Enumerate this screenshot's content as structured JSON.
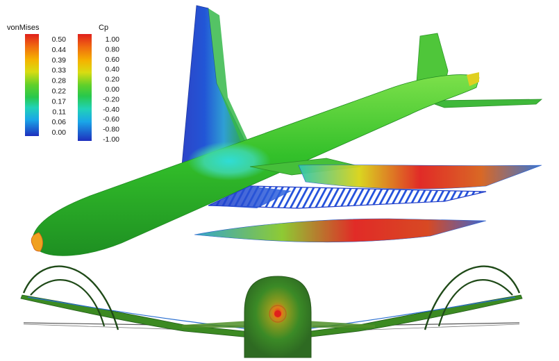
{
  "legends": {
    "von_mises": {
      "title": "vonMises",
      "ticks": [
        "0.50",
        "0.44",
        "0.39",
        "0.33",
        "0.28",
        "0.22",
        "0.17",
        "0.11",
        "0.06",
        "0.00"
      ]
    },
    "cp": {
      "title": "Cp",
      "ticks": [
        "1.00",
        "0.80",
        "0.60",
        "0.40",
        "0.20",
        "0.00",
        "-0.20",
        "-0.40",
        "-0.60",
        "-0.80",
        "-1.00"
      ]
    }
  },
  "colormap": [
    "#e0201c",
    "#f06a10",
    "#f5b300",
    "#d8dc12",
    "#86d31e",
    "#35c83a",
    "#22cc5a",
    "#21d2b7",
    "#1aa6e8",
    "#1f57d8",
    "#1e2fbe"
  ]
}
